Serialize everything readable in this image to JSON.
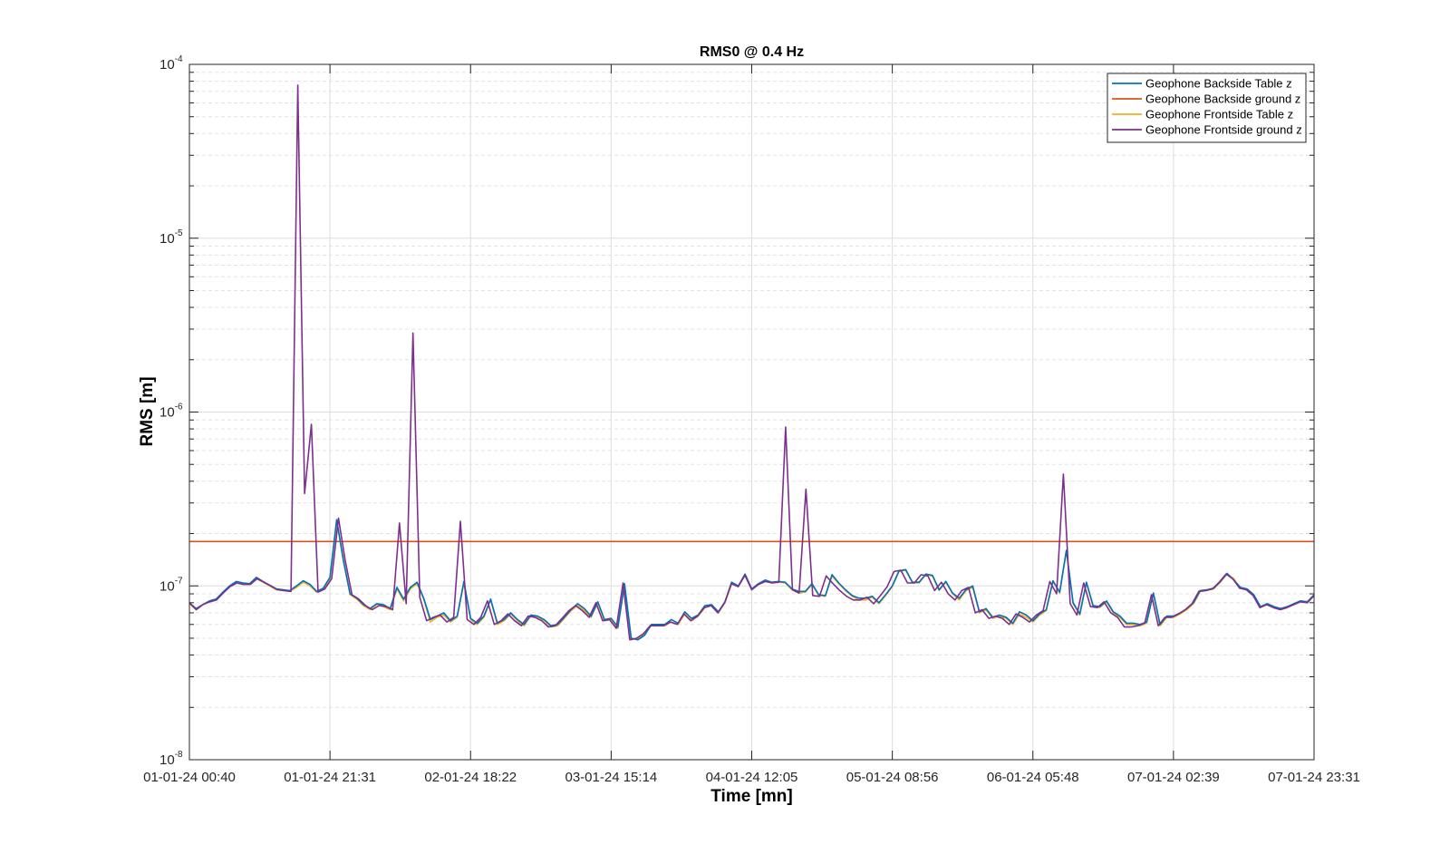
{
  "chart_data": {
    "type": "line",
    "title": "RMS0 @ 0.4 Hz",
    "xlabel": "Time [mn]",
    "ylabel": "RMS [m]",
    "yscale": "log",
    "ylim": [
      1e-08,
      0.0001
    ],
    "y_ticks": [
      {
        "base": "10",
        "exp": "-8",
        "value": 1e-08
      },
      {
        "base": "10",
        "exp": "-7",
        "value": 1e-07
      },
      {
        "base": "10",
        "exp": "-6",
        "value": 1e-06
      },
      {
        "base": "10",
        "exp": "-5",
        "value": 1e-05
      },
      {
        "base": "10",
        "exp": "-4",
        "value": 0.0001
      }
    ],
    "x_tick_labels": [
      "01-01-24 00:40",
      "01-01-24 21:31",
      "02-01-24 18:22",
      "03-01-24 15:14",
      "04-01-24 12:05",
      "05-01-24 08:56",
      "06-01-24 05:48",
      "07-01-24 02:39",
      "07-01-24 23:31"
    ],
    "grid": true,
    "legend_position": "top-right",
    "x_sample_count": 175,
    "series": [
      {
        "name": "Geophone Backside Table z",
        "color": "#0072BD",
        "values": [
          8e-08,
          7.4e-08,
          7.8e-08,
          8.2e-08,
          8.4e-08,
          9.2e-08,
          1e-07,
          1.06e-07,
          1.04e-07,
          1.03e-07,
          1.12e-07,
          1.06e-07,
          1.01e-07,
          9.6e-08,
          9.5e-08,
          9.4e-08,
          1e-07,
          1.07e-07,
          1.02e-07,
          9.3e-08,
          9.7e-08,
          1.12e-07,
          2.4e-07,
          1.4e-07,
          9e-08,
          8.5e-08,
          7.8e-08,
          7.4e-08,
          7.9e-08,
          7.8e-08,
          7.4e-08,
          9.8e-08,
          8.4e-08,
          9.8e-08,
          1.05e-07,
          8.5e-08,
          6.4e-08,
          6.7e-08,
          7e-08,
          6.3e-08,
          6.7e-08,
          1.06e-07,
          6.5e-08,
          6.1e-08,
          6.7e-08,
          8.4e-08,
          6.1e-08,
          6.4e-08,
          7e-08,
          6.4e-08,
          6e-08,
          6.8e-08,
          6.7e-08,
          6.4e-08,
          5.9e-08,
          6e-08,
          6.6e-08,
          7.3e-08,
          7.9e-08,
          7.4e-08,
          6.7e-08,
          8.1e-08,
          6.4e-08,
          6.5e-08,
          5.8e-08,
          1.03e-07,
          5e-08,
          4.9e-08,
          5.2e-08,
          6e-08,
          6e-08,
          6e-08,
          6.4e-08,
          6.1e-08,
          7.1e-08,
          6.5e-08,
          6.8e-08,
          7.7e-08,
          7.8e-08,
          7.1e-08,
          8.1e-08,
          1.05e-07,
          1e-07,
          1.17e-07,
          9.6e-08,
          1.03e-07,
          1.08e-07,
          1.05e-07,
          1.06e-07,
          1.05e-07,
          9.6e-08,
          9.3e-08,
          9.3e-08,
          1.03e-07,
          8.9e-08,
          8.8e-08,
          1.16e-07,
          1.04e-07,
          9.5e-08,
          8.8e-08,
          8.5e-08,
          8.5e-08,
          8.7e-08,
          8e-08,
          8.9e-08,
          1e-07,
          1.22e-07,
          1.24e-07,
          1.05e-07,
          1.05e-07,
          1.17e-07,
          1.15e-07,
          9.5e-08,
          1.06e-07,
          9.1e-08,
          8.5e-08,
          9.5e-08,
          1e-07,
          7.1e-08,
          7.4e-08,
          6.6e-08,
          6.8e-08,
          6.6e-08,
          6.1e-08,
          7.1e-08,
          6.8e-08,
          6.3e-08,
          6.9e-08,
          7.3e-08,
          1.07e-07,
          9.2e-08,
          1.6e-07,
          8e-08,
          6.9e-08,
          1.05e-07,
          7.7e-08,
          7.6e-08,
          8.2e-08,
          7.1e-08,
          6.7e-08,
          6.1e-08,
          6.1e-08,
          6e-08,
          6.2e-08,
          9.1e-08,
          6e-08,
          6.7e-08,
          6.7e-08,
          7e-08,
          7.4e-08,
          8e-08,
          9.4e-08,
          9.5e-08,
          9.7e-08,
          1.06e-07,
          1.18e-07,
          1.08e-07,
          9.8e-08,
          9.6e-08,
          8.9e-08,
          7.6e-08,
          7.9e-08,
          7.6e-08,
          7.4e-08,
          7.6e-08,
          7.9e-08,
          8.2e-08,
          8.1e-08,
          8.9e-08
        ]
      },
      {
        "name": "Geophone Backside ground z",
        "color": "#D95319",
        "values": [
          1.8e-07,
          1.8e-07
        ]
      },
      {
        "name": "Geophone Frontside Table z",
        "color": "#EDB120",
        "values": [
          7.9e-08,
          7.3e-08,
          7.8e-08,
          8.1e-08,
          8.3e-08,
          9.1e-08,
          9.9e-08,
          1.04e-07,
          1.02e-07,
          1.02e-07,
          1.1e-07,
          1.05e-07,
          1e-07,
          9.5e-08,
          9.4e-08,
          9.3e-08,
          9.8e-08,
          1.05e-07,
          1e-07,
          9.2e-08,
          9.6e-08,
          1.1e-07,
          2.4e-07,
          1.4e-07,
          8.9e-08,
          8.4e-08,
          7.7e-08,
          7.3e-08,
          7.8e-08,
          7.6e-08,
          7.3e-08,
          9.6e-08,
          8.2e-08,
          9.6e-08,
          1.03e-07,
          8.4e-08,
          6.2e-08,
          6.6e-08,
          6.8e-08,
          6.2e-08,
          6.6e-08,
          1.04e-07,
          6.4e-08,
          6e-08,
          6.6e-08,
          8.3e-08,
          6e-08,
          6.3e-08,
          6.9e-08,
          6.3e-08,
          5.9e-08,
          6.7e-08,
          6.6e-08,
          6.3e-08,
          5.8e-08,
          5.9e-08,
          6.5e-08,
          7.2e-08,
          7.7e-08,
          7.2e-08,
          6.6e-08,
          8e-08,
          6.3e-08,
          6.4e-08,
          5.7e-08,
          1.02e-07,
          4.9e-08,
          5e-08,
          5.3e-08,
          5.9e-08,
          5.9e-08,
          5.9e-08,
          6.2e-08,
          6e-08,
          6.9e-08,
          6.3e-08,
          6.7e-08,
          7.5e-08,
          7.7e-08,
          7e-08,
          8e-08,
          1.03e-07,
          9.9e-08,
          1.15e-07,
          9.5e-08,
          1.02e-07,
          1.06e-07,
          1.04e-07,
          1.05e-07,
          1.04e-07,
          9.5e-08,
          9.1e-08,
          9.2e-08,
          1.02e-07,
          8.8e-08,
          8.7e-08,
          1.14e-07,
          1.03e-07,
          9.4e-08,
          8.7e-08,
          8.3e-08,
          8.3e-08,
          8.6e-08,
          7.9e-08,
          8.8e-08,
          9.9e-08,
          1.21e-07,
          1.23e-07,
          1.04e-07,
          1.04e-07,
          1.16e-07,
          1.14e-07,
          9.4e-08,
          1.05e-07,
          9e-08,
          8.3e-08,
          9.4e-08,
          9.8e-08,
          7e-08,
          7.3e-08,
          6.5e-08,
          6.7e-08,
          6.5e-08,
          6e-08,
          6.9e-08,
          6.6e-08,
          6.2e-08,
          6.8e-08,
          7.2e-08,
          1.06e-07,
          9.1e-08,
          1.6e-07,
          7.9e-08,
          6.8e-08,
          1.04e-07,
          7.6e-08,
          7.5e-08,
          8.1e-08,
          7e-08,
          6.6e-08,
          6e-08,
          6e-08,
          5.9e-08,
          6.1e-08,
          9e-08,
          5.9e-08,
          6.6e-08,
          6.6e-08,
          6.9e-08,
          7.3e-08,
          7.9e-08,
          9.3e-08,
          9.4e-08,
          9.6e-08,
          1.05e-07,
          1.17e-07,
          1.1e-07,
          9.7e-08,
          9.5e-08,
          8.8e-08,
          7.5e-08,
          7.8e-08,
          7.5e-08,
          7.3e-08,
          7.5e-08,
          7.8e-08,
          8.1e-08,
          8e-08,
          8.8e-08
        ]
      },
      {
        "name": "Geophone Frontside ground z",
        "color": "#7E2F8E",
        "values": [
          8e-08,
          7.3e-08,
          7.8e-08,
          8.1e-08,
          8.3e-08,
          9.1e-08,
          9.9e-08,
          1.04e-07,
          1.02e-07,
          1.02e-07,
          1.1e-07,
          1.05e-07,
          1e-07,
          9.5e-08,
          9.4e-08,
          9.3e-08,
          7.6e-05,
          3.4e-07,
          8.5e-07,
          9.2e-08,
          9.6e-08,
          1.1e-07,
          2.45e-07,
          1.4e-07,
          8.9e-08,
          8.4e-08,
          7.7e-08,
          7.3e-08,
          7.7e-08,
          7.6e-08,
          7.3e-08,
          2.3e-07,
          7.9e-08,
          2.85e-06,
          8.6e-08,
          6.3e-08,
          6.6e-08,
          6.8e-08,
          6.2e-08,
          6.6e-08,
          2.35e-07,
          6.4e-08,
          6e-08,
          6.6e-08,
          8.2e-08,
          6e-08,
          6.3e-08,
          6.9e-08,
          6.3e-08,
          5.9e-08,
          6.7e-08,
          6.6e-08,
          6.3e-08,
          5.8e-08,
          5.9e-08,
          6.5e-08,
          7.2e-08,
          7.7e-08,
          7.2e-08,
          6.6e-08,
          8e-08,
          6.3e-08,
          6.4e-08,
          5.7e-08,
          1.04e-07,
          4.9e-08,
          5e-08,
          5.3e-08,
          5.9e-08,
          5.9e-08,
          5.9e-08,
          6.2e-08,
          6e-08,
          6.9e-08,
          6.3e-08,
          6.7e-08,
          7.5e-08,
          7.7e-08,
          7e-08,
          8e-08,
          1.03e-07,
          9.9e-08,
          1.15e-07,
          9.5e-08,
          1.02e-07,
          1.06e-07,
          1.04e-07,
          1.05e-07,
          8.2e-07,
          9.5e-08,
          9.1e-08,
          3.6e-07,
          8.8e-08,
          8.7e-08,
          1.14e-07,
          1.03e-07,
          9.4e-08,
          8.7e-08,
          8.3e-08,
          8.3e-08,
          8.6e-08,
          7.9e-08,
          8.8e-08,
          9.9e-08,
          1.21e-07,
          1.23e-07,
          1.04e-07,
          1.04e-07,
          1.16e-07,
          1.14e-07,
          9.4e-08,
          1.05e-07,
          9e-08,
          8.3e-08,
          9.4e-08,
          9.8e-08,
          7e-08,
          7.3e-08,
          6.5e-08,
          6.7e-08,
          6.5e-08,
          6e-08,
          6.9e-08,
          6.6e-08,
          6.2e-08,
          6.8e-08,
          7.2e-08,
          1.06e-07,
          9e-08,
          4.4e-07,
          7.9e-08,
          6.8e-08,
          1.04e-07,
          7.6e-08,
          7.5e-08,
          8.1e-08,
          7e-08,
          6.6e-08,
          5.8e-08,
          5.8e-08,
          5.9e-08,
          6.1e-08,
          8.9e-08,
          5.9e-08,
          6.6e-08,
          6.6e-08,
          6.9e-08,
          7.3e-08,
          7.9e-08,
          9.3e-08,
          9.4e-08,
          9.6e-08,
          1.05e-07,
          1.17e-07,
          1.1e-07,
          9.7e-08,
          9.5e-08,
          8.8e-08,
          7.5e-08,
          7.8e-08,
          7.5e-08,
          7.3e-08,
          7.5e-08,
          7.8e-08,
          8.1e-08,
          8e-08,
          8.8e-08
        ]
      }
    ]
  }
}
